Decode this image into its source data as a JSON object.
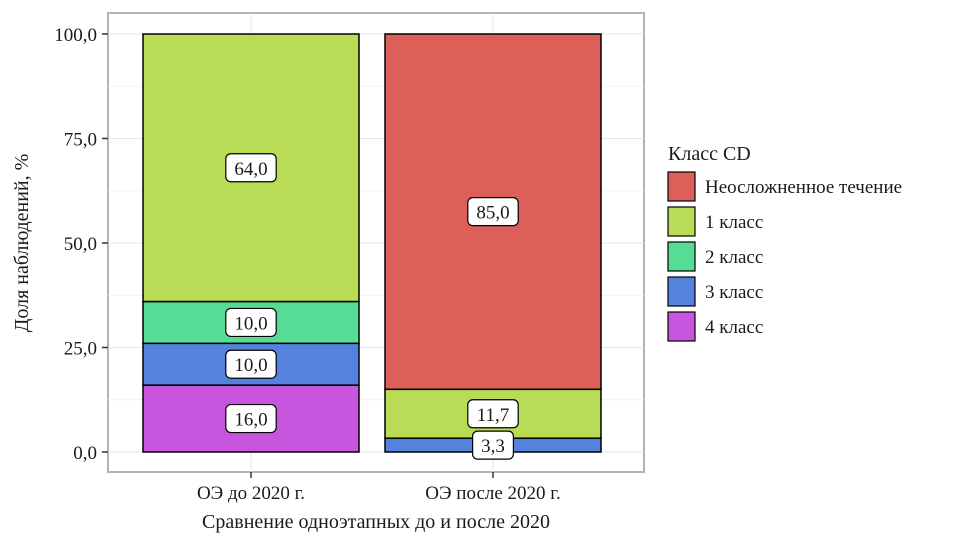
{
  "chart_data": {
    "type": "bar",
    "stacked": true,
    "title": "",
    "xlabel": "Сравнение одноэтапных до и после 2020",
    "ylabel": "Доля наблюдений, %",
    "ylim": [
      0,
      100
    ],
    "yticks": [
      "0,0",
      "25,0",
      "50,0",
      "75,0",
      "100,0"
    ],
    "categories": [
      "ОЭ до 2020 г.",
      "ОЭ после 2020 г."
    ],
    "legend_title": "Класс CD",
    "legend_position": "right",
    "grid": true,
    "series": [
      {
        "name": "4  класс",
        "color": "#c855de",
        "values": [
          16.0,
          0
        ],
        "labels": [
          "16,0",
          ""
        ]
      },
      {
        "name": "3  класс",
        "color": "#5482dc",
        "values": [
          10.0,
          3.3
        ],
        "labels": [
          "10,0",
          "3,3"
        ]
      },
      {
        "name": "2  класс",
        "color": "#55dc95",
        "values": [
          10.0,
          0
        ],
        "labels": [
          "10,0",
          ""
        ]
      },
      {
        "name": "1 класс",
        "color": "#b8dc55",
        "values": [
          64.0,
          11.7
        ],
        "labels": [
          "64,0",
          "11,7"
        ]
      },
      {
        "name": "Неосложненное течение",
        "color": "#dc5f5a",
        "values": [
          0,
          85.0
        ],
        "labels": [
          "",
          "85,0"
        ]
      }
    ],
    "legend_order": [
      4,
      3,
      2,
      1,
      0
    ]
  }
}
